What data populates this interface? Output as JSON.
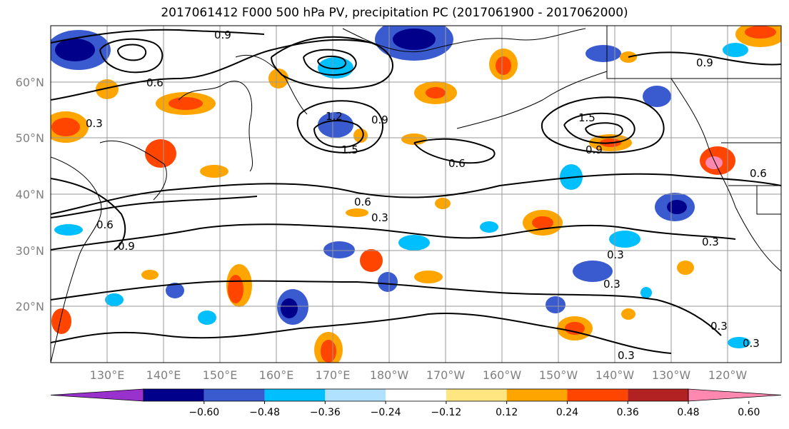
{
  "title": "2017061412 F000 500 hPa PV, precipitation PC (2017061900 - 2017062000)",
  "lat_labels": [
    "60°N",
    "50°N",
    "40°N",
    "30°N",
    "20°N"
  ],
  "lon_labels": [
    "130°E",
    "140°E",
    "150°E",
    "160°E",
    "170°E",
    "180°W",
    "170°W",
    "160°W",
    "150°W",
    "140°W",
    "130°W",
    "120°W"
  ],
  "colorbar": {
    "labels": [
      "−0.60",
      "−0.48",
      "−0.36",
      "−0.24",
      "−0.12",
      "0.12",
      "0.24",
      "0.36",
      "0.48",
      "0.60"
    ],
    "colors": [
      "#9932cc",
      "#00008b",
      "#3a5bcf",
      "#00bfff",
      "#b0e2ff",
      "#ffffff",
      "#ffe680",
      "#ffa500",
      "#ff4500",
      "#b22222",
      "#ff88b0"
    ]
  },
  "contour_labels": [
    "0.9",
    "0.6",
    "0.3",
    "1.2",
    "1.5",
    "0.9",
    "0.6",
    "0.3",
    "0.6",
    "0.3",
    "0.9",
    "1.5",
    "0.9",
    "0.3",
    "0.3",
    "0.3",
    "0.3",
    "0.6",
    "0.9",
    "0.6",
    "0.3"
  ]
}
